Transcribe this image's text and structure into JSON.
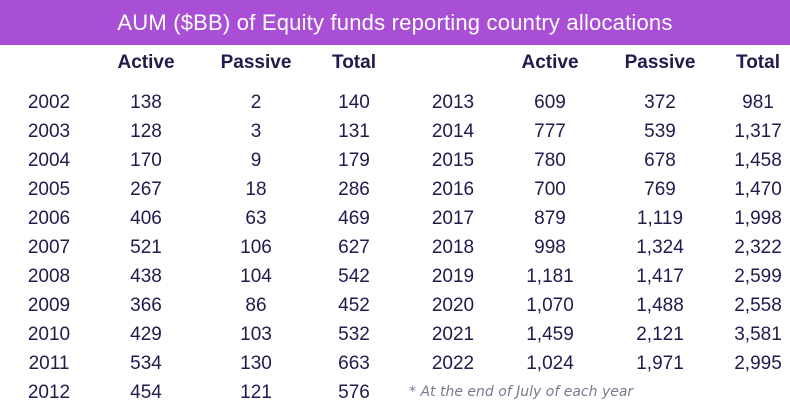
{
  "title": "AUM ($BB) of Equity funds reporting country allocations",
  "headers": [
    "Active",
    "Passive",
    "Total"
  ],
  "left_rows": [
    {
      "year": "2002",
      "active": "138",
      "passive": "2",
      "total": "140"
    },
    {
      "year": "2003",
      "active": "128",
      "passive": "3",
      "total": "131"
    },
    {
      "year": "2004",
      "active": "170",
      "passive": "9",
      "total": "179"
    },
    {
      "year": "2005",
      "active": "267",
      "passive": "18",
      "total": "286"
    },
    {
      "year": "2006",
      "active": "406",
      "passive": "63",
      "total": "469"
    },
    {
      "year": "2007",
      "active": "521",
      "passive": "106",
      "total": "627"
    },
    {
      "year": "2008",
      "active": "438",
      "passive": "104",
      "total": "542"
    },
    {
      "year": "2009",
      "active": "366",
      "passive": "86",
      "total": "452"
    },
    {
      "year": "2010",
      "active": "429",
      "passive": "103",
      "total": "532"
    },
    {
      "year": "2011",
      "active": "534",
      "passive": "130",
      "total": "663"
    },
    {
      "year": "2012",
      "active": "454",
      "passive": "121",
      "total": "576"
    }
  ],
  "right_rows": [
    {
      "year": "2013",
      "active": "609",
      "passive": "372",
      "total": "981"
    },
    {
      "year": "2014",
      "active": "777",
      "passive": "539",
      "total": "1,317"
    },
    {
      "year": "2015",
      "active": "780",
      "passive": "678",
      "total": "1,458"
    },
    {
      "year": "2016",
      "active": "700",
      "passive": "769",
      "total": "1,470"
    },
    {
      "year": "2017",
      "active": "879",
      "passive": "1,119",
      "total": "1,998"
    },
    {
      "year": "2018",
      "active": "998",
      "passive": "1,324",
      "total": "2,322"
    },
    {
      "year": "2019",
      "active": "1,181",
      "passive": "1,417",
      "total": "2,599"
    },
    {
      "year": "2020",
      "active": "1,070",
      "passive": "1,488",
      "total": "2,558"
    },
    {
      "year": "2021",
      "active": "1,459",
      "passive": "2,121",
      "total": "3,581"
    },
    {
      "year": "2022",
      "active": "1,024",
      "passive": "1,971",
      "total": "2,995"
    }
  ],
  "footnote": "* At the end of July of each year",
  "colors": {
    "title_bg": "#a94fd6",
    "title_text": "#ffffff",
    "body_text": "#1f1b4d",
    "footnote_text": "#7a7890"
  }
}
